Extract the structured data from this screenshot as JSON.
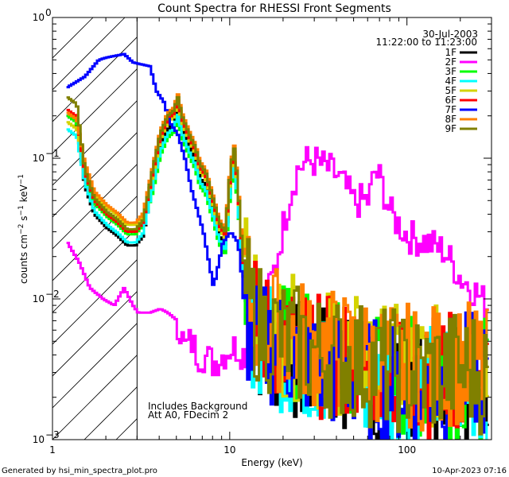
{
  "chart_data": {
    "type": "line",
    "title": "Count Spectra for RHESSI Front Segments",
    "xlabel": "Energy (keV)",
    "ylabel": {
      "main": "counts cm",
      "sup1": "−2",
      "mid": " s",
      "sup2": "−1",
      "end": " keV",
      "sup3": "−1"
    },
    "x_scale": "log",
    "y_scale": "log",
    "xlim": [
      1,
      300
    ],
    "ylim": [
      0.001,
      1
    ],
    "x_ticks": [
      {
        "value": 1,
        "label": "1"
      },
      {
        "value": 10,
        "label": "10"
      },
      {
        "value": 100,
        "label": "100"
      }
    ],
    "y_ticks": [
      {
        "value": 1,
        "base": "10",
        "exp": "0"
      },
      {
        "value": 0.1,
        "base": "10",
        "exp": "−1"
      },
      {
        "value": 0.01,
        "base": "10",
        "exp": "−2"
      },
      {
        "value": 0.001,
        "base": "10",
        "exp": "−3"
      }
    ],
    "legend_position": "top-right",
    "date": "30-Jul-2003",
    "time_range": "11:22:00 to 11:23:00",
    "annotation_lines": [
      "Includes Background",
      "Att A0, FDecim 2"
    ],
    "hatched_region_upper_keV": 3.0,
    "series": [
      {
        "name": "1F",
        "color": "#000000",
        "base": 0.2,
        "pk_scale": 0.8
      },
      {
        "name": "2F",
        "color": "#ff00ff"
      },
      {
        "name": "3F",
        "color": "#00ff00",
        "base": 0.2,
        "pk_scale": 0.7
      },
      {
        "name": "4F",
        "color": "#00ffff",
        "base": 0.16,
        "pk_scale": 0.75
      },
      {
        "name": "5F",
        "color": "#d4d400",
        "base": 0.18,
        "pk_scale": 0.9
      },
      {
        "name": "6F",
        "color": "#ff0000",
        "base": 0.22,
        "pk_scale": 0.95
      },
      {
        "name": "7F",
        "color": "#0000ff"
      },
      {
        "name": "8F",
        "color": "#ff8000",
        "base": 0.21,
        "pk_scale": 1.05
      },
      {
        "name": "9F",
        "color": "#808000",
        "base": 0.27,
        "pk_scale": 1.0
      }
    ],
    "typical_front_spectrum": {
      "energies_keV": [
        1.2,
        1.35,
        1.5,
        1.7,
        2.0,
        2.3,
        2.6,
        2.9,
        3.2,
        3.6,
        4.0,
        4.4,
        4.8,
        5.0,
        5.3,
        5.8,
        6.3,
        6.7,
        7.2,
        8.0,
        8.6,
        9.3,
        10.0,
        10.5,
        11.0,
        11.5,
        12.2,
        13,
        15,
        20,
        30,
        50,
        80,
        120,
        180,
        250,
        290
      ],
      "counts": [
        0.19,
        0.18,
        0.08,
        0.05,
        0.04,
        0.035,
        0.03,
        0.03,
        0.035,
        0.08,
        0.15,
        0.2,
        0.22,
        0.28,
        0.2,
        0.15,
        0.12,
        0.09,
        0.08,
        0.05,
        0.035,
        0.03,
        0.09,
        0.12,
        0.06,
        0.025,
        0.012,
        0.008,
        0.006,
        0.005,
        0.004,
        0.0035,
        0.003,
        0.0028,
        0.003,
        0.003,
        0.0025
      ]
    },
    "series_2F": {
      "energies_keV": [
        1.2,
        1.4,
        1.6,
        1.9,
        2.2,
        2.5,
        2.8,
        3.0,
        3.5,
        4.0,
        4.4,
        5.0,
        5.5,
        6.0,
        6.5,
        7.0,
        8.0,
        9.0,
        10.0,
        11.0,
        12.0,
        14.0,
        16.0,
        18.0,
        20.0,
        22.0,
        24.0,
        27.0,
        30.0,
        35.0,
        40.0,
        45.0,
        50.0,
        55.0,
        60.0,
        65.0,
        70.0,
        80.0,
        100.0,
        130.0,
        160.0,
        200.0,
        230.0,
        260.0,
        290.0
      ],
      "counts": [
        0.025,
        0.018,
        0.012,
        0.01,
        0.009,
        0.012,
        0.009,
        0.008,
        0.008,
        0.0085,
        0.008,
        0.007,
        0.0045,
        0.005,
        0.004,
        0.004,
        0.0035,
        0.004,
        0.0045,
        0.0045,
        0.004,
        0.006,
        0.01,
        0.018,
        0.035,
        0.06,
        0.085,
        0.095,
        0.095,
        0.085,
        0.075,
        0.06,
        0.048,
        0.05,
        0.05,
        0.08,
        0.07,
        0.04,
        0.028,
        0.025,
        0.022,
        0.014,
        0.012,
        0.01,
        0.0085
      ]
    },
    "series_7F": {
      "energies_keV": [
        1.2,
        1.5,
        1.8,
        2.0,
        2.5,
        2.8,
        3.0,
        3.5,
        3.8,
        4.2,
        4.5,
        5.0,
        5.5,
        6.0,
        7.0,
        8.0,
        9.0,
        10.0,
        11.0,
        11.5,
        12.0,
        13.0,
        15.0,
        20.0,
        30.0,
        50.0,
        80.0,
        120.0,
        180.0,
        250.0,
        290.0
      ],
      "counts": [
        0.32,
        0.38,
        0.5,
        0.52,
        0.55,
        0.48,
        0.47,
        0.45,
        0.3,
        0.25,
        0.18,
        0.15,
        0.1,
        0.06,
        0.03,
        0.012,
        0.025,
        0.03,
        0.025,
        0.015,
        0.008,
        0.005,
        0.005,
        0.0045,
        0.0035,
        0.0028,
        0.0025,
        0.0022,
        0.0028,
        0.003,
        0.0025
      ]
    }
  },
  "footer": {
    "left": "Generated by hsi_min_spectra_plot.pro",
    "right": "10-Apr-2023 07:16"
  }
}
